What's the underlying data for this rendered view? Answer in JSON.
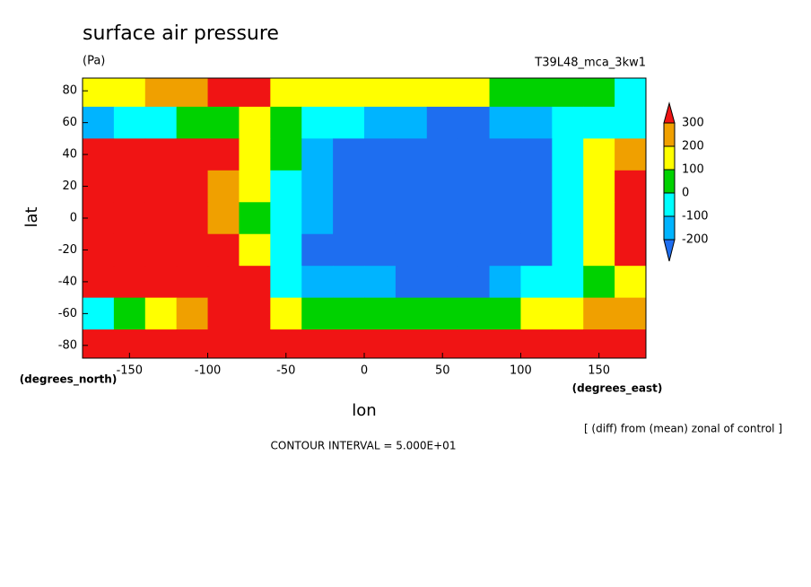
{
  "chart_data": {
    "type": "contour",
    "title": "surface air pressure",
    "units": "(Pa)",
    "dataset": "T39L48_mca_3kw1",
    "xlabel": "lon",
    "ylabel": "lat",
    "xunits": "(degrees_east)",
    "yunits": "(degrees_north)",
    "note": "[ (diff) from (mean) zonal of control ]",
    "contour_interval": "CONTOUR INTERVAL = 5.000E+01",
    "xlim": [
      -180,
      180
    ],
    "ylim": [
      -88,
      88
    ],
    "xticks": [
      -150,
      -100,
      -50,
      0,
      50,
      100,
      150
    ],
    "yticks": [
      80,
      60,
      40,
      20,
      0,
      -20,
      -40,
      -60,
      -80
    ],
    "x": [
      -170,
      -150,
      -130,
      -110,
      -90,
      -70,
      -50,
      -30,
      -10,
      10,
      30,
      50,
      70,
      90,
      110,
      130,
      150,
      170
    ],
    "y": [
      80,
      60,
      40,
      20,
      0,
      -20,
      -40,
      -60,
      -80
    ],
    "z": [
      [
        150,
        100,
        200,
        250,
        350,
        300,
        150,
        100,
        100,
        150,
        150,
        150,
        100,
        50,
        50,
        20,
        0,
        -30
      ],
      [
        -120,
        -50,
        -20,
        20,
        50,
        150,
        50,
        -50,
        -100,
        -150,
        -200,
        -250,
        -250,
        -200,
        -150,
        -100,
        -50,
        -20
      ],
      [
        500,
        700,
        800,
        600,
        300,
        150,
        0,
        -150,
        -300,
        -400,
        -500,
        -500,
        -600,
        -400,
        -250,
        -100,
        100,
        200
      ],
      [
        600,
        800,
        700,
        400,
        250,
        150,
        -50,
        -200,
        -400,
        -500,
        -500,
        -600,
        -700,
        -500,
        -300,
        -50,
        100,
        300
      ],
      [
        500,
        400,
        450,
        350,
        200,
        80,
        -50,
        -200,
        -400,
        -500,
        -500,
        -450,
        -400,
        -350,
        -250,
        -50,
        150,
        400
      ],
      [
        500,
        600,
        600,
        450,
        300,
        100,
        -80,
        -250,
        -400,
        -400,
        -450,
        -550,
        -600,
        -450,
        -300,
        -100,
        100,
        350
      ],
      [
        500,
        700,
        700,
        600,
        400,
        300,
        -50,
        -150,
        -200,
        -200,
        -250,
        -250,
        -250,
        -150,
        -80,
        -20,
        50,
        150
      ],
      [
        -50,
        50,
        150,
        200,
        300,
        300,
        100,
        50,
        30,
        0,
        20,
        50,
        30,
        50,
        100,
        150,
        200,
        250
      ],
      [
        500,
        500,
        500,
        500,
        500,
        500,
        500,
        500,
        500,
        500,
        500,
        500,
        500,
        500,
        450,
        400,
        400,
        450
      ]
    ],
    "levels": [
      -200,
      -100,
      0,
      100,
      200,
      300
    ],
    "colors": [
      "#1e6ef0",
      "#00b4ff",
      "#00ffff",
      "#00d200",
      "#ffff00",
      "#f0a000",
      "#f01414"
    ]
  }
}
